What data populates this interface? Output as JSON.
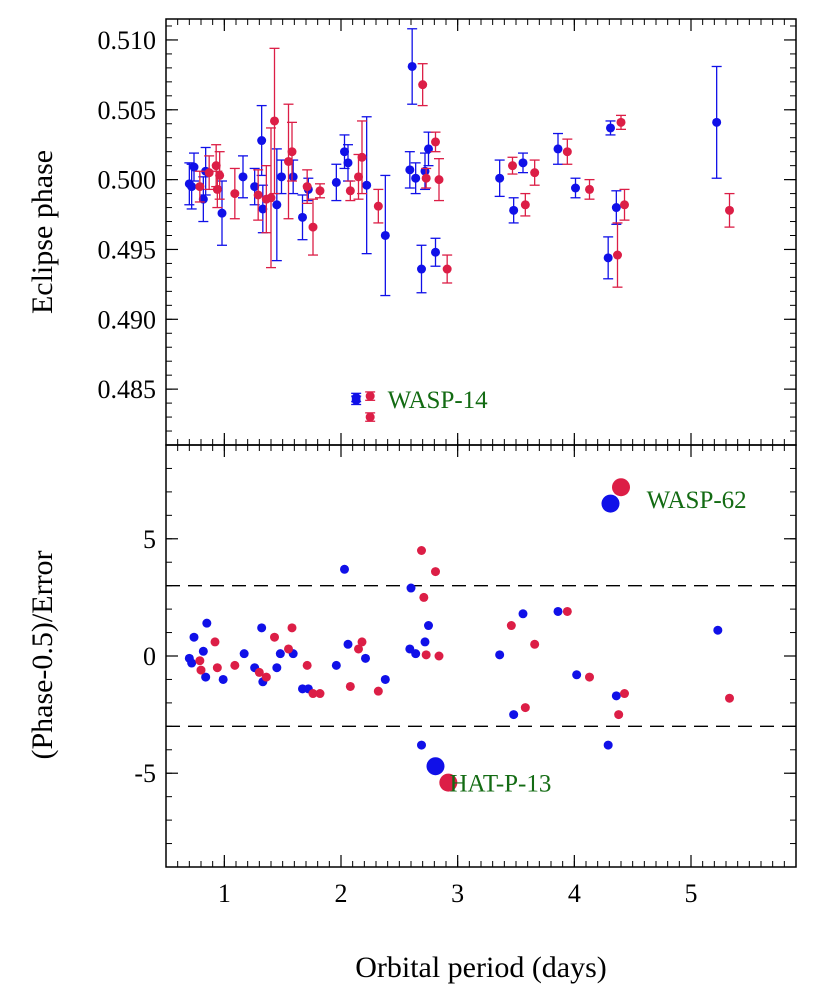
{
  "colors": {
    "blue": "#1010e8",
    "red": "#dc1e46",
    "annotation": "#136b13",
    "axis": "#000000",
    "background": "#ffffff"
  },
  "chart_data": [
    {
      "type": "scatter",
      "panel": "top",
      "xlabel": "",
      "ylabel": "Eclipse phase",
      "xlim": [
        0.5,
        5.9
      ],
      "ylim": [
        0.481,
        0.5115
      ],
      "yticks": [
        "0.485",
        "0.490",
        "0.495",
        "0.500",
        "0.505",
        "0.510"
      ],
      "ytick_values": [
        0.485,
        0.49,
        0.495,
        0.5,
        0.505,
        0.51
      ],
      "annotations": [
        {
          "text": "WASP-14",
          "x": 2.4,
          "y": 0.4843
        }
      ],
      "series": [
        {
          "color": "blue",
          "points": [
            {
              "x": 0.7,
              "y": 0.4997,
              "err": 0.0015
            },
            {
              "x": 0.72,
              "y": 0.4995,
              "err": 0.0016
            },
            {
              "x": 0.74,
              "y": 0.5009,
              "err": 0.001
            },
            {
              "x": 0.82,
              "y": 0.4986,
              "err": 0.0016
            },
            {
              "x": 0.84,
              "y": 0.5006,
              "err": 0.0017
            },
            {
              "x": 0.98,
              "y": 0.4976,
              "err": 0.0023
            },
            {
              "x": 1.16,
              "y": 0.5002,
              "err": 0.0015
            },
            {
              "x": 1.26,
              "y": 0.4995,
              "err": 0.0013
            },
            {
              "x": 1.32,
              "y": 0.5028,
              "err": 0.0025
            },
            {
              "x": 1.33,
              "y": 0.4979,
              "err": 0.0017
            },
            {
              "x": 1.45,
              "y": 0.4982,
              "err": 0.004
            },
            {
              "x": 1.49,
              "y": 0.5002,
              "err": 0.0012
            },
            {
              "x": 1.59,
              "y": 0.5002,
              "err": 0.0012
            },
            {
              "x": 1.67,
              "y": 0.4973,
              "err": 0.0016
            },
            {
              "x": 1.72,
              "y": 0.4993,
              "err": 0.0008
            },
            {
              "x": 1.96,
              "y": 0.4998,
              "err": 0.0013
            },
            {
              "x": 2.03,
              "y": 0.502,
              "err": 0.0012
            },
            {
              "x": 2.06,
              "y": 0.5012,
              "err": 0.0013
            },
            {
              "x": 2.22,
              "y": 0.4996,
              "err": 0.0049
            },
            {
              "x": 2.38,
              "y": 0.496,
              "err": 0.0043
            },
            {
              "x": 2.59,
              "y": 0.5007,
              "err": 0.0013
            },
            {
              "x": 2.61,
              "y": 0.5081,
              "err": 0.0027
            },
            {
              "x": 2.64,
              "y": 0.5001,
              "err": 0.0011
            },
            {
              "x": 2.69,
              "y": 0.4936,
              "err": 0.0017
            },
            {
              "x": 2.72,
              "y": 0.5006,
              "err": 0.0013
            },
            {
              "x": 2.75,
              "y": 0.5022,
              "err": 0.0012
            },
            {
              "x": 2.81,
              "y": 0.4948,
              "err": 0.001
            },
            {
              "x": 3.36,
              "y": 0.5001,
              "err": 0.0013
            },
            {
              "x": 3.48,
              "y": 0.4978,
              "err": 0.0009
            },
            {
              "x": 3.56,
              "y": 0.5012,
              "err": 0.0007
            },
            {
              "x": 3.86,
              "y": 0.5022,
              "err": 0.0011
            },
            {
              "x": 4.01,
              "y": 0.4994,
              "err": 0.0007
            },
            {
              "x": 4.29,
              "y": 0.4944,
              "err": 0.0015
            },
            {
              "x": 4.31,
              "y": 0.5037,
              "err": 0.0005
            },
            {
              "x": 4.36,
              "y": 0.498,
              "err": 0.0012
            },
            {
              "x": 5.22,
              "y": 0.5041,
              "err": 0.004
            },
            {
              "x": 2.13,
              "y": 0.4842,
              "err": 0.0003
            },
            {
              "x": 2.13,
              "y": 0.4844,
              "err": 0.0003
            }
          ]
        },
        {
          "color": "red",
          "points": [
            {
              "x": 0.79,
              "y": 0.4995,
              "err": 0.0011
            },
            {
              "x": 0.87,
              "y": 0.5005,
              "err": 0.0012
            },
            {
              "x": 0.93,
              "y": 0.501,
              "err": 0.0015
            },
            {
              "x": 0.94,
              "y": 0.4993,
              "err": 0.0013
            },
            {
              "x": 0.96,
              "y": 0.5003,
              "err": 0.0017
            },
            {
              "x": 1.09,
              "y": 0.499,
              "err": 0.0018
            },
            {
              "x": 1.29,
              "y": 0.4989,
              "err": 0.0018
            },
            {
              "x": 1.36,
              "y": 0.4986,
              "err": 0.0024
            },
            {
              "x": 1.4,
              "y": 0.4987,
              "err": 0.005
            },
            {
              "x": 1.43,
              "y": 0.5042,
              "err": 0.0052
            },
            {
              "x": 1.55,
              "y": 0.5013,
              "err": 0.0041
            },
            {
              "x": 1.58,
              "y": 0.502,
              "err": 0.0021
            },
            {
              "x": 1.71,
              "y": 0.4995,
              "err": 0.0012
            },
            {
              "x": 1.76,
              "y": 0.4966,
              "err": 0.002
            },
            {
              "x": 1.82,
              "y": 0.4992,
              "err": 0.0005
            },
            {
              "x": 2.08,
              "y": 0.4992,
              "err": 0.0007
            },
            {
              "x": 2.15,
              "y": 0.5002,
              "err": 0.0016
            },
            {
              "x": 2.18,
              "y": 0.5016,
              "err": 0.0026
            },
            {
              "x": 2.32,
              "y": 0.4981,
              "err": 0.0012
            },
            {
              "x": 2.7,
              "y": 0.5068,
              "err": 0.0015
            },
            {
              "x": 2.73,
              "y": 0.5001,
              "err": 0.0007
            },
            {
              "x": 2.81,
              "y": 0.5027,
              "err": 0.0007
            },
            {
              "x": 2.84,
              "y": 0.5,
              "err": 0.0015
            },
            {
              "x": 2.91,
              "y": 0.4936,
              "err": 0.001
            },
            {
              "x": 3.47,
              "y": 0.501,
              "err": 0.0006
            },
            {
              "x": 3.58,
              "y": 0.4982,
              "err": 0.0008
            },
            {
              "x": 3.66,
              "y": 0.5005,
              "err": 0.0009
            },
            {
              "x": 3.94,
              "y": 0.502,
              "err": 0.0009
            },
            {
              "x": 4.13,
              "y": 0.4993,
              "err": 0.0007
            },
            {
              "x": 4.37,
              "y": 0.4946,
              "err": 0.0023
            },
            {
              "x": 4.4,
              "y": 0.5041,
              "err": 0.0005
            },
            {
              "x": 4.43,
              "y": 0.4982,
              "err": 0.0011
            },
            {
              "x": 5.33,
              "y": 0.4978,
              "err": 0.0012
            },
            {
              "x": 2.25,
              "y": 0.4845,
              "err": 0.0003
            },
            {
              "x": 2.25,
              "y": 0.483,
              "err": 0.0003
            }
          ]
        }
      ]
    },
    {
      "type": "scatter",
      "panel": "bottom",
      "xlabel": "Orbital period (days)",
      "ylabel": "(Phase-0.5)/Error",
      "xlim": [
        0.5,
        5.9
      ],
      "ylim": [
        -9,
        9
      ],
      "xticks": [
        "1",
        "2",
        "3",
        "4",
        "5"
      ],
      "xtick_values": [
        1,
        2,
        3,
        4,
        5
      ],
      "yticks": [
        "-5",
        "0",
        "5"
      ],
      "ytick_values": [
        -5,
        0,
        5
      ],
      "reference_lines": [
        3,
        -3
      ],
      "annotations": [
        {
          "text": "WASP-62",
          "x": 4.62,
          "y": 6.7
        },
        {
          "text": "HAT-P-13",
          "x": 2.93,
          "y": -5.4
        }
      ],
      "series": [
        {
          "color": "blue",
          "points": [
            {
              "x": 0.7,
              "y": -0.1
            },
            {
              "x": 0.72,
              "y": -0.3
            },
            {
              "x": 0.74,
              "y": 0.8
            },
            {
              "x": 0.82,
              "y": 0.2
            },
            {
              "x": 0.84,
              "y": -0.9
            },
            {
              "x": 0.85,
              "y": 1.4
            },
            {
              "x": 0.99,
              "y": -1.0
            },
            {
              "x": 1.17,
              "y": 0.1
            },
            {
              "x": 1.26,
              "y": -0.5
            },
            {
              "x": 1.32,
              "y": 1.2
            },
            {
              "x": 1.33,
              "y": -1.1
            },
            {
              "x": 1.45,
              "y": -0.5
            },
            {
              "x": 1.48,
              "y": 0.1
            },
            {
              "x": 1.59,
              "y": 0.1
            },
            {
              "x": 1.67,
              "y": -1.4
            },
            {
              "x": 1.72,
              "y": -1.4
            },
            {
              "x": 1.96,
              "y": -0.4
            },
            {
              "x": 2.03,
              "y": 3.7
            },
            {
              "x": 2.06,
              "y": 0.5
            },
            {
              "x": 2.21,
              "y": -0.1
            },
            {
              "x": 2.38,
              "y": -1.0
            },
            {
              "x": 2.59,
              "y": 0.3
            },
            {
              "x": 2.6,
              "y": 2.9
            },
            {
              "x": 2.64,
              "y": 0.1
            },
            {
              "x": 2.69,
              "y": -3.8
            },
            {
              "x": 2.72,
              "y": 0.6
            },
            {
              "x": 2.75,
              "y": 1.3
            },
            {
              "x": 3.36,
              "y": 0.05
            },
            {
              "x": 3.48,
              "y": -2.5
            },
            {
              "x": 3.56,
              "y": 1.8
            },
            {
              "x": 3.86,
              "y": 1.9
            },
            {
              "x": 4.02,
              "y": -0.8
            },
            {
              "x": 4.29,
              "y": -3.8
            },
            {
              "x": 4.36,
              "y": -1.7
            },
            {
              "x": 5.23,
              "y": 1.1
            }
          ],
          "highlighted": [
            {
              "x": 4.31,
              "y": 6.5,
              "label": "WASP-62"
            },
            {
              "x": 2.81,
              "y": -4.7,
              "label": "HAT-P-13"
            }
          ]
        },
        {
          "color": "red",
          "points": [
            {
              "x": 0.79,
              "y": -0.2
            },
            {
              "x": 0.8,
              "y": -0.6
            },
            {
              "x": 0.92,
              "y": 0.6
            },
            {
              "x": 0.94,
              "y": -0.5
            },
            {
              "x": 1.09,
              "y": -0.4
            },
            {
              "x": 1.3,
              "y": -0.7
            },
            {
              "x": 1.36,
              "y": -0.9
            },
            {
              "x": 1.43,
              "y": 0.8
            },
            {
              "x": 1.55,
              "y": 0.3
            },
            {
              "x": 1.58,
              "y": 1.2
            },
            {
              "x": 1.71,
              "y": -0.4
            },
            {
              "x": 1.76,
              "y": -1.6
            },
            {
              "x": 1.82,
              "y": -1.6
            },
            {
              "x": 2.08,
              "y": -1.3
            },
            {
              "x": 2.15,
              "y": 0.3
            },
            {
              "x": 2.18,
              "y": 0.6
            },
            {
              "x": 2.32,
              "y": -1.5
            },
            {
              "x": 2.69,
              "y": 4.5
            },
            {
              "x": 2.71,
              "y": 2.5
            },
            {
              "x": 2.73,
              "y": 0.05
            },
            {
              "x": 2.81,
              "y": 3.6
            },
            {
              "x": 2.84,
              "y": 0.0
            },
            {
              "x": 3.46,
              "y": 1.3
            },
            {
              "x": 3.58,
              "y": -2.2
            },
            {
              "x": 3.66,
              "y": 0.5
            },
            {
              "x": 3.94,
              "y": 1.9
            },
            {
              "x": 4.13,
              "y": -0.9
            },
            {
              "x": 4.38,
              "y": -2.5
            },
            {
              "x": 4.43,
              "y": -1.6
            },
            {
              "x": 5.33,
              "y": -1.8
            }
          ],
          "highlighted": [
            {
              "x": 4.4,
              "y": 7.2,
              "label": "WASP-62"
            },
            {
              "x": 2.92,
              "y": -5.4,
              "label": "HAT-P-13"
            }
          ]
        }
      ]
    }
  ]
}
